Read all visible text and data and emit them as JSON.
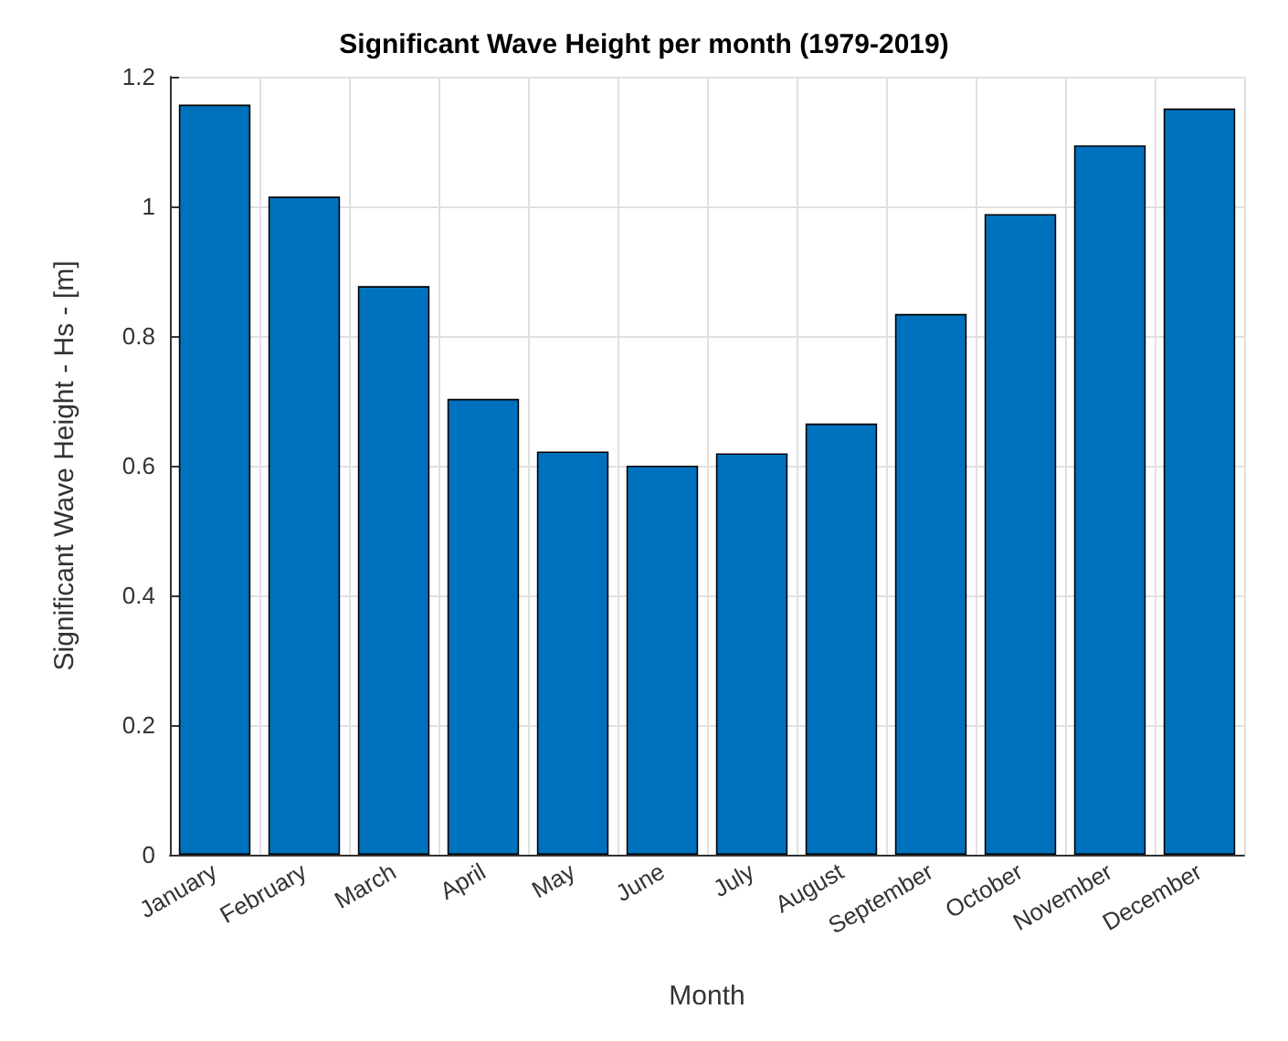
{
  "chart_data": {
    "type": "bar",
    "title": "Significant Wave Height per month (1979-2019)",
    "xlabel": "Month",
    "ylabel": "Significant Wave Height - Hs - [m]",
    "categories": [
      "January",
      "February",
      "March",
      "April",
      "May",
      "June",
      "July",
      "August",
      "September",
      "October",
      "November",
      "December"
    ],
    "values": [
      1.157,
      1.015,
      0.877,
      0.703,
      0.622,
      0.6,
      0.619,
      0.665,
      0.834,
      0.988,
      1.094,
      1.151
    ],
    "color": "#0072bd",
    "ylim": [
      0,
      1.2
    ],
    "yticks": [
      0,
      0.2,
      0.4,
      0.6,
      0.8,
      1,
      1.2
    ],
    "grid": true
  }
}
